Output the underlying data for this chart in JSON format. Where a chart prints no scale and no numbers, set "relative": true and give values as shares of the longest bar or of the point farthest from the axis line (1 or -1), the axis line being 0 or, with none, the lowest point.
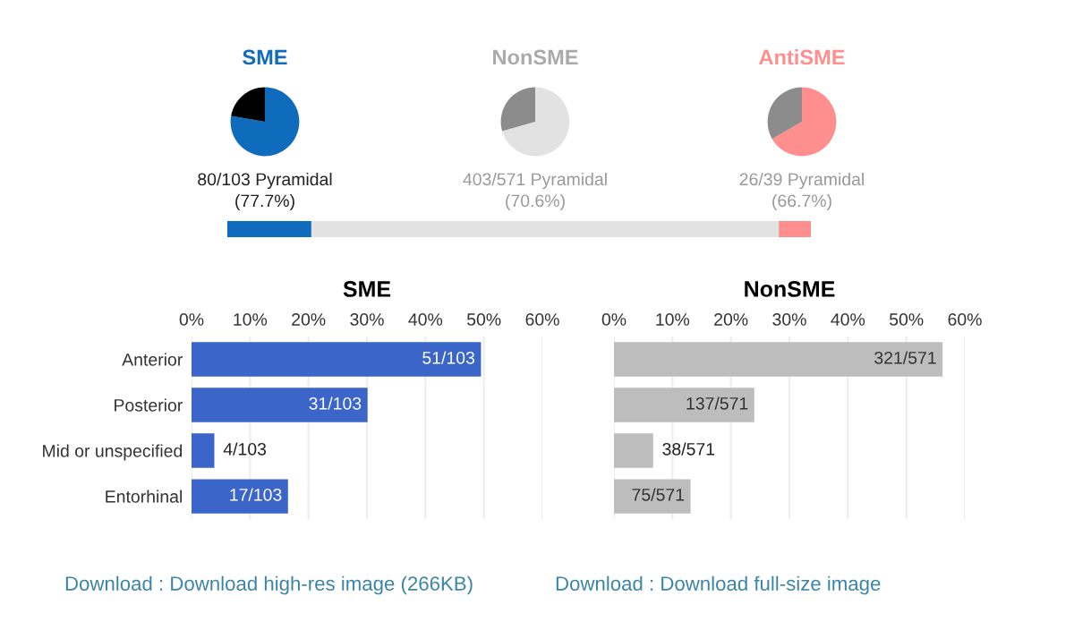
{
  "chart_data": [
    {
      "type": "pie",
      "title": "SME",
      "categories": [
        null,
        null
      ],
      "values": [
        77.7,
        22.3
      ],
      "colors": [
        "#0f6cbd",
        "#000000"
      ],
      "annotations": [
        "80/103 Pyramidal",
        "(77.7%)"
      ]
    },
    {
      "type": "pie",
      "title": "NonSME",
      "categories": [
        null,
        null
      ],
      "values": [
        70.6,
        29.4
      ],
      "colors": [
        "#e2e2e2",
        "#8c8c8c"
      ],
      "annotations": [
        "403/571 Pyramidal",
        "(70.6%)"
      ]
    },
    {
      "type": "pie",
      "title": "AntiSME",
      "categories": [
        null,
        null
      ],
      "values": [
        66.7,
        33.3
      ],
      "colors": [
        "#ff8f8f",
        "#8c8c8c"
      ],
      "annotations": [
        "26/39 Pyramidal",
        "(66.7%)"
      ]
    },
    {
      "type": "bar",
      "orientation": "horizontal",
      "stacked": true,
      "relative": true,
      "categories": [
        null
      ],
      "series": [
        {
          "color": "#0f6cbd",
          "values": [
            0.144
          ]
        },
        {
          "color": "#e2e2e2",
          "values": [
            0.801
          ]
        },
        {
          "color": "#ff8f8f",
          "values": [
            0.055
          ]
        }
      ]
    },
    {
      "type": "bar",
      "orientation": "horizontal",
      "title": "SME",
      "categories": [
        "Anterior",
        "Posterior",
        "Mid or unspecified",
        "Entorhinal"
      ],
      "values": [
        49.5,
        30.1,
        3.9,
        16.5
      ],
      "value_labels": [
        "51/103",
        "31/103",
        "4/103",
        "17/103"
      ],
      "color": "#3b65c8",
      "xlim": [
        0,
        60
      ],
      "xticks": [
        {
          "value": 0,
          "label": "0%"
        },
        {
          "value": 10,
          "label": "10%"
        },
        {
          "value": 20,
          "label": "20%"
        },
        {
          "value": 30,
          "label": "30%"
        },
        {
          "value": 40,
          "label": "40%"
        },
        {
          "value": 50,
          "label": "50%"
        },
        {
          "value": 60,
          "label": "60%"
        }
      ],
      "grid": "x",
      "annotations": [
        "Download : Download high-res image (266KB)"
      ]
    },
    {
      "type": "bar",
      "orientation": "horizontal",
      "title": "NonSME",
      "categories": [
        null,
        null,
        null,
        null
      ],
      "values": [
        56.2,
        24.0,
        6.7,
        13.1
      ],
      "value_labels": [
        "321/571",
        "137/571",
        "38/571",
        "75/571"
      ],
      "color": "#bdbdbd",
      "xlim": [
        0,
        60
      ],
      "xticks": [
        {
          "value": 0,
          "label": "0%"
        },
        {
          "value": 10,
          "label": "10%"
        },
        {
          "value": 20,
          "label": "20%"
        },
        {
          "value": 30,
          "label": "30%"
        },
        {
          "value": 40,
          "label": "40%"
        },
        {
          "value": 50,
          "label": "50%"
        },
        {
          "value": 60,
          "label": "60%"
        }
      ],
      "grid": "x",
      "annotations": [
        "Download : Download full-size image"
      ]
    }
  ]
}
